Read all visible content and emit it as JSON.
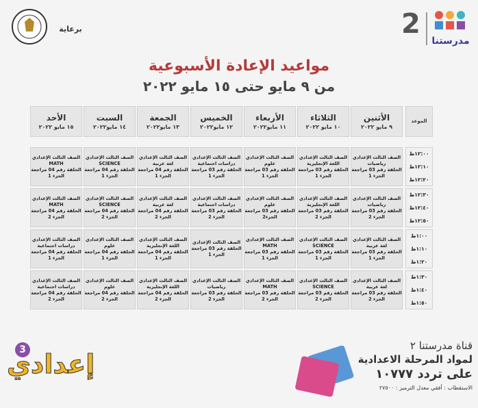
{
  "header": {
    "brand": "مدرستنا",
    "channel_number": "2",
    "sponsor": "برعاية",
    "title": "مواعيد الإعادة الأسبوعية",
    "subtitle": "من ٩ مايو حتى ١٥ مايو ٢٠٢٢"
  },
  "table": {
    "time_header": "الموعد",
    "columns": [
      {
        "day": "الأثنين",
        "date": "٩ مايو ٢٠٢٢"
      },
      {
        "day": "الثلاثاء",
        "date": "١٠ مايو ٢٠٢٢"
      },
      {
        "day": "الأربعاء",
        "date": "١١ مايو٢٠٢٢"
      },
      {
        "day": "الخميس",
        "date": "١٢ مايو٢٠٢٢"
      },
      {
        "day": "الجمعة",
        "date": "١٣ مايو٢٠٢٢"
      },
      {
        "day": "السبت",
        "date": "١٤ مايو٢٠٢٢"
      },
      {
        "day": "الأحد",
        "date": "١٥ مايو ٢٠٢٢"
      }
    ],
    "rows": [
      {
        "times": [
          "١٢:٠٠ظ",
          "١٢:١٠ظ",
          "١٢:٢٠ظ"
        ],
        "cells": [
          [
            "الصف الثالث الإعدادي",
            "رياضيات",
            "الحلقة رقم 03 مراجعة",
            "الجزء 1"
          ],
          [
            "الصف الثالث الإعدادي",
            "اللغة الإنجليزية",
            "الحلقة رقم 03 مراجعة",
            "الجزء 1"
          ],
          [
            "الصف الثالث الإعدادي",
            "علوم",
            "الحلقة رقم 03 مراجعة",
            "الجزء 1"
          ],
          [
            "الصف الثالث الإعدادي",
            "دراسات اجتماعية",
            "الحلقة رقم 03 مراجعة",
            "الجزء 1"
          ],
          [
            "الصف الثالث الإعدادي",
            "لغة عربية",
            "الحلقة رقم 04 مراجعة",
            "الجزء 1"
          ],
          [
            "الصف الثالث الإعدادي",
            "SCIENCE",
            "الحلقة رقم 04 مراجعة",
            "الجزء 1"
          ],
          [
            "الصف الثالث الإعدادي",
            "MATH",
            "الحلقة رقم 04 مراجعة",
            "الجزء 1"
          ]
        ]
      },
      {
        "times": [
          "١٢:٣٠ظ",
          "١٢:٤٠ظ",
          "١٢:٥٠ظ"
        ],
        "cells": [
          [
            "الصف الثالث الإعدادي",
            "رياضيات",
            "الحلقة رقم 03 مراجعة",
            "الجزء 2"
          ],
          [
            "الصف الثالث الإعدادي",
            "اللغة الإنجليزية",
            "الحلقة رقم 03 مراجعة",
            "الجزء 2"
          ],
          [
            "الصف الثالث الإعدادي",
            "علوم",
            "الحلقة رقم 03 مراجعة",
            "الجزء2"
          ],
          [
            "الصف الثالث الإعدادي",
            "دراسات اجتماعية",
            "الحلقة رقم 03 مراجعة",
            "الجزء 2"
          ],
          [
            "الصف الثالث الإعدادي",
            "لغة عربية",
            "الحلقة رقم 04 مراجعة",
            "الجزء 2"
          ],
          [
            "الصف الثالث الإعدادي",
            "SCIENCE",
            "الحلقة رقم 04 مراجعة",
            "الجزء 2"
          ],
          [
            "الصف الثالث الإعدادي",
            "MATH",
            "الحلقة رقم 04 مراجعة",
            "الجزء 2"
          ]
        ]
      },
      {
        "times": [
          "١:٠٠ظ",
          "١:١٠ظ",
          "١:٢٠ظ"
        ],
        "cells": [
          [
            "الصف الثالث الإعدادي",
            "لغة عربية",
            "الحلقة رقم 03 مراجعة",
            "الجزء 1"
          ],
          [
            "الصف الثالث الإعدادي",
            "SCIENCE",
            "الحلقة رقم 03 مراجعة",
            "الجزء 1"
          ],
          [
            "الصف الثالث الإعدادي",
            "MATH",
            "الحلقة رقم 03 مراجعة",
            "الجزء 1"
          ],
          [
            "الصف الثالث الإعدادي",
            "الحلقة رقم 03 مراجعة",
            "الجزء 1"
          ],
          [
            "الصف الثالث الإعدادي",
            "اللغة الإنجليزية",
            "الحلقة رقم 04 مراجعة",
            "الجزء 1"
          ],
          [
            "الصف الثالث الإعدادي",
            "علوم",
            "الحلقة رقم 04 مراجعة",
            "الجزء 1"
          ],
          [
            "الصف الثالث الإعدادي",
            "دراسات اجتماعية",
            "الحلقة رقم 04 مراجعة",
            "الجزء 1"
          ]
        ]
      },
      {
        "times": [
          "١:٣٠ظ",
          "١:٤٠ظ",
          "١:٥٠ظ"
        ],
        "cells": [
          [
            "الصف الثالث الإعدادي",
            "لغة عربية",
            "الحلقة رقم 03 مراجعة",
            "الجزء 2"
          ],
          [
            "الصف الثالث الإعدادي",
            "SCIENCE",
            "الحلقة رقم 03 مراجعة",
            "الجزء 2"
          ],
          [
            "الصف الثالث الإعدادي",
            "MATH",
            "الحلقة رقم 03 مراجعة",
            "الجزء 2"
          ],
          [
            "الصف الثالث الإعدادي",
            "رياضيات",
            "الحلقة رقم 03 مراجعة",
            "الجزء 2"
          ],
          [
            "الصف الثالث الإعدادي",
            "اللغة الإنجليزية",
            "الحلقة رقم 04 مراجعة",
            "الجزء 2"
          ],
          [
            "الصف الثالث الإعدادي",
            "علوم",
            "الحلقة رقم 04 مراجعة",
            "الجزء 2"
          ],
          [
            "الصف الثالث الإعدادي",
            "دراسات اجتماعية",
            "الحلقة رقم 04 مراجعة",
            "الجزء 2"
          ]
        ]
      }
    ]
  },
  "footer": {
    "channel_line": "قناة مدرستنا ٢",
    "subjects_line": "لمواد المرحلة الاعدادية",
    "frequency_line": "على تردد ١٠٧٧٧",
    "details_line": "الاستقطاب : أفقي معدل الترميز : ٢٧٥٠٠",
    "grade_word": "إعدادي",
    "grade_number": "3"
  }
}
